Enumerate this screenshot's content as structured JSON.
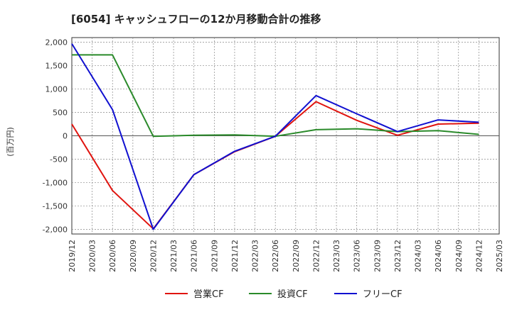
{
  "chart_data": {
    "type": "line",
    "title": "[6054]  キャッシュフローの12か月移動合計の推移",
    "ylabel": "(百万円)",
    "xlabel": "",
    "x": [
      "2019/12",
      "2020/03",
      "2020/06",
      "2020/09",
      "2020/12",
      "2021/03",
      "2021/06",
      "2021/09",
      "2021/12",
      "2022/03",
      "2022/06",
      "2022/09",
      "2022/12",
      "2023/03",
      "2023/06",
      "2023/09",
      "2023/12",
      "2024/03",
      "2024/06",
      "2024/09",
      "2024/12",
      "2025/03"
    ],
    "ylim": [
      -2100,
      2100
    ],
    "yticks": [
      2000,
      1500,
      1000,
      500,
      0,
      -500,
      -1000,
      -1500,
      -2000
    ],
    "ytick_labels": [
      "2,000",
      "1,500",
      "1,000",
      "500",
      "0",
      "-500",
      "-1,000",
      "-1,500",
      "-2,000"
    ],
    "grid": true,
    "legend_position": "bottom",
    "series": [
      {
        "name": "営業CF",
        "color": "#e0140f",
        "values": [
          250,
          null,
          -1170,
          null,
          -1990,
          null,
          -830,
          null,
          -340,
          null,
          -10,
          null,
          730,
          null,
          330,
          null,
          10,
          null,
          250,
          null,
          270,
          null
        ]
      },
      {
        "name": "投資CF",
        "color": "#2a8a2a",
        "values": [
          1730,
          null,
          1730,
          null,
          -10,
          null,
          10,
          null,
          20,
          null,
          -10,
          null,
          130,
          null,
          150,
          null,
          90,
          null,
          110,
          null,
          30,
          null
        ]
      },
      {
        "name": "フリーCF",
        "color": "#1010d0",
        "values": [
          1970,
          null,
          560,
          null,
          -2000,
          null,
          -830,
          null,
          -330,
          null,
          -10,
          null,
          860,
          null,
          470,
          null,
          90,
          null,
          340,
          null,
          290,
          null
        ]
      }
    ]
  }
}
